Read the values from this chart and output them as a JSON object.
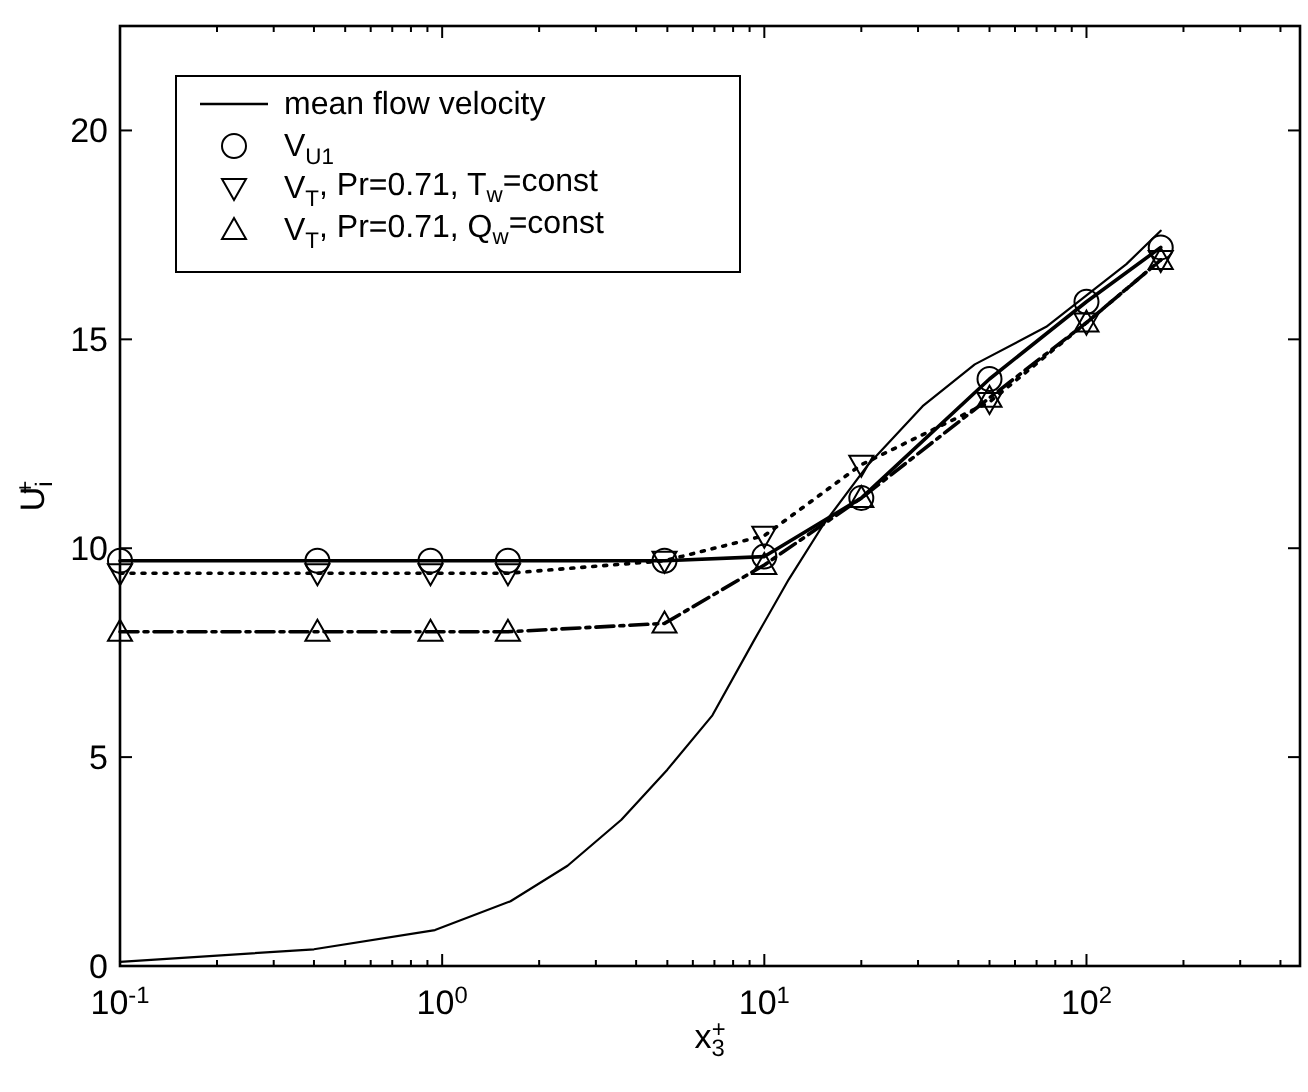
{
  "chart_data": {
    "type": "line",
    "xlabel": "x$_{3}$$^{+}$",
    "ylabel": "U$_{i}$$^{+}$",
    "log": "x",
    "xlim": [
      0.1,
      460
    ],
    "xticks": [
      {
        "value": 0.1,
        "label": "10$^{-1}$"
      },
      {
        "value": 1,
        "label": "10$^{0}$"
      },
      {
        "value": 10,
        "label": "10$^{1}$"
      },
      {
        "value": 100,
        "label": "10$^{2}$"
      }
    ],
    "ylim": [
      0,
      22.5
    ],
    "yticks": [
      0,
      5,
      10,
      15,
      20
    ],
    "grid": false,
    "legend": "top left",
    "series": [
      {
        "name": "mean flow velocity",
        "color": "#000000",
        "marker": "none",
        "line_style": "solid",
        "x": [
          0.1,
          0.4,
          0.95,
          1.63,
          2.45,
          3.6,
          5.0,
          6.9,
          9.3,
          11.9,
          15.2,
          21,
          31,
          45,
          75,
          133,
          170
        ],
        "values": [
          0.1,
          0.4,
          0.86,
          1.55,
          2.4,
          3.5,
          4.7,
          6.0,
          7.8,
          9.25,
          10.55,
          12.0,
          13.4,
          14.4,
          15.3,
          16.8,
          17.6
        ]
      },
      {
        "name": "V$_{U1}$",
        "color": "#000000",
        "marker": "circle",
        "line_style": "solid",
        "x": [
          0.1,
          0.41,
          0.92,
          1.6,
          4.9,
          10,
          20,
          50,
          100,
          170
        ],
        "values": [
          9.7,
          9.7,
          9.7,
          9.7,
          9.7,
          9.8,
          11.2,
          14.05,
          15.9,
          17.2
        ]
      },
      {
        "name": "V$_{T}$, Pr=0.71, T$_{w}$=const",
        "color": "#000000",
        "marker": "triangle-down",
        "line_style": "dotted",
        "x": [
          0.1,
          0.41,
          0.92,
          1.6,
          4.9,
          10,
          20,
          50,
          100,
          170
        ],
        "values": [
          9.4,
          9.4,
          9.4,
          9.4,
          9.7,
          10.3,
          12.0,
          13.5,
          15.4,
          16.9
        ]
      },
      {
        "name": "V$_{T}$, Pr=0.71, Q$_{w}$=const",
        "color": "#000000",
        "marker": "triangle",
        "line_style": "dashed",
        "x": [
          0.1,
          0.41,
          0.92,
          1.6,
          4.9,
          10,
          20,
          50,
          100,
          170
        ],
        "values": [
          8.0,
          8.0,
          8.0,
          8.0,
          8.2,
          9.6,
          11.2,
          13.6,
          15.4,
          16.9
        ]
      }
    ]
  }
}
